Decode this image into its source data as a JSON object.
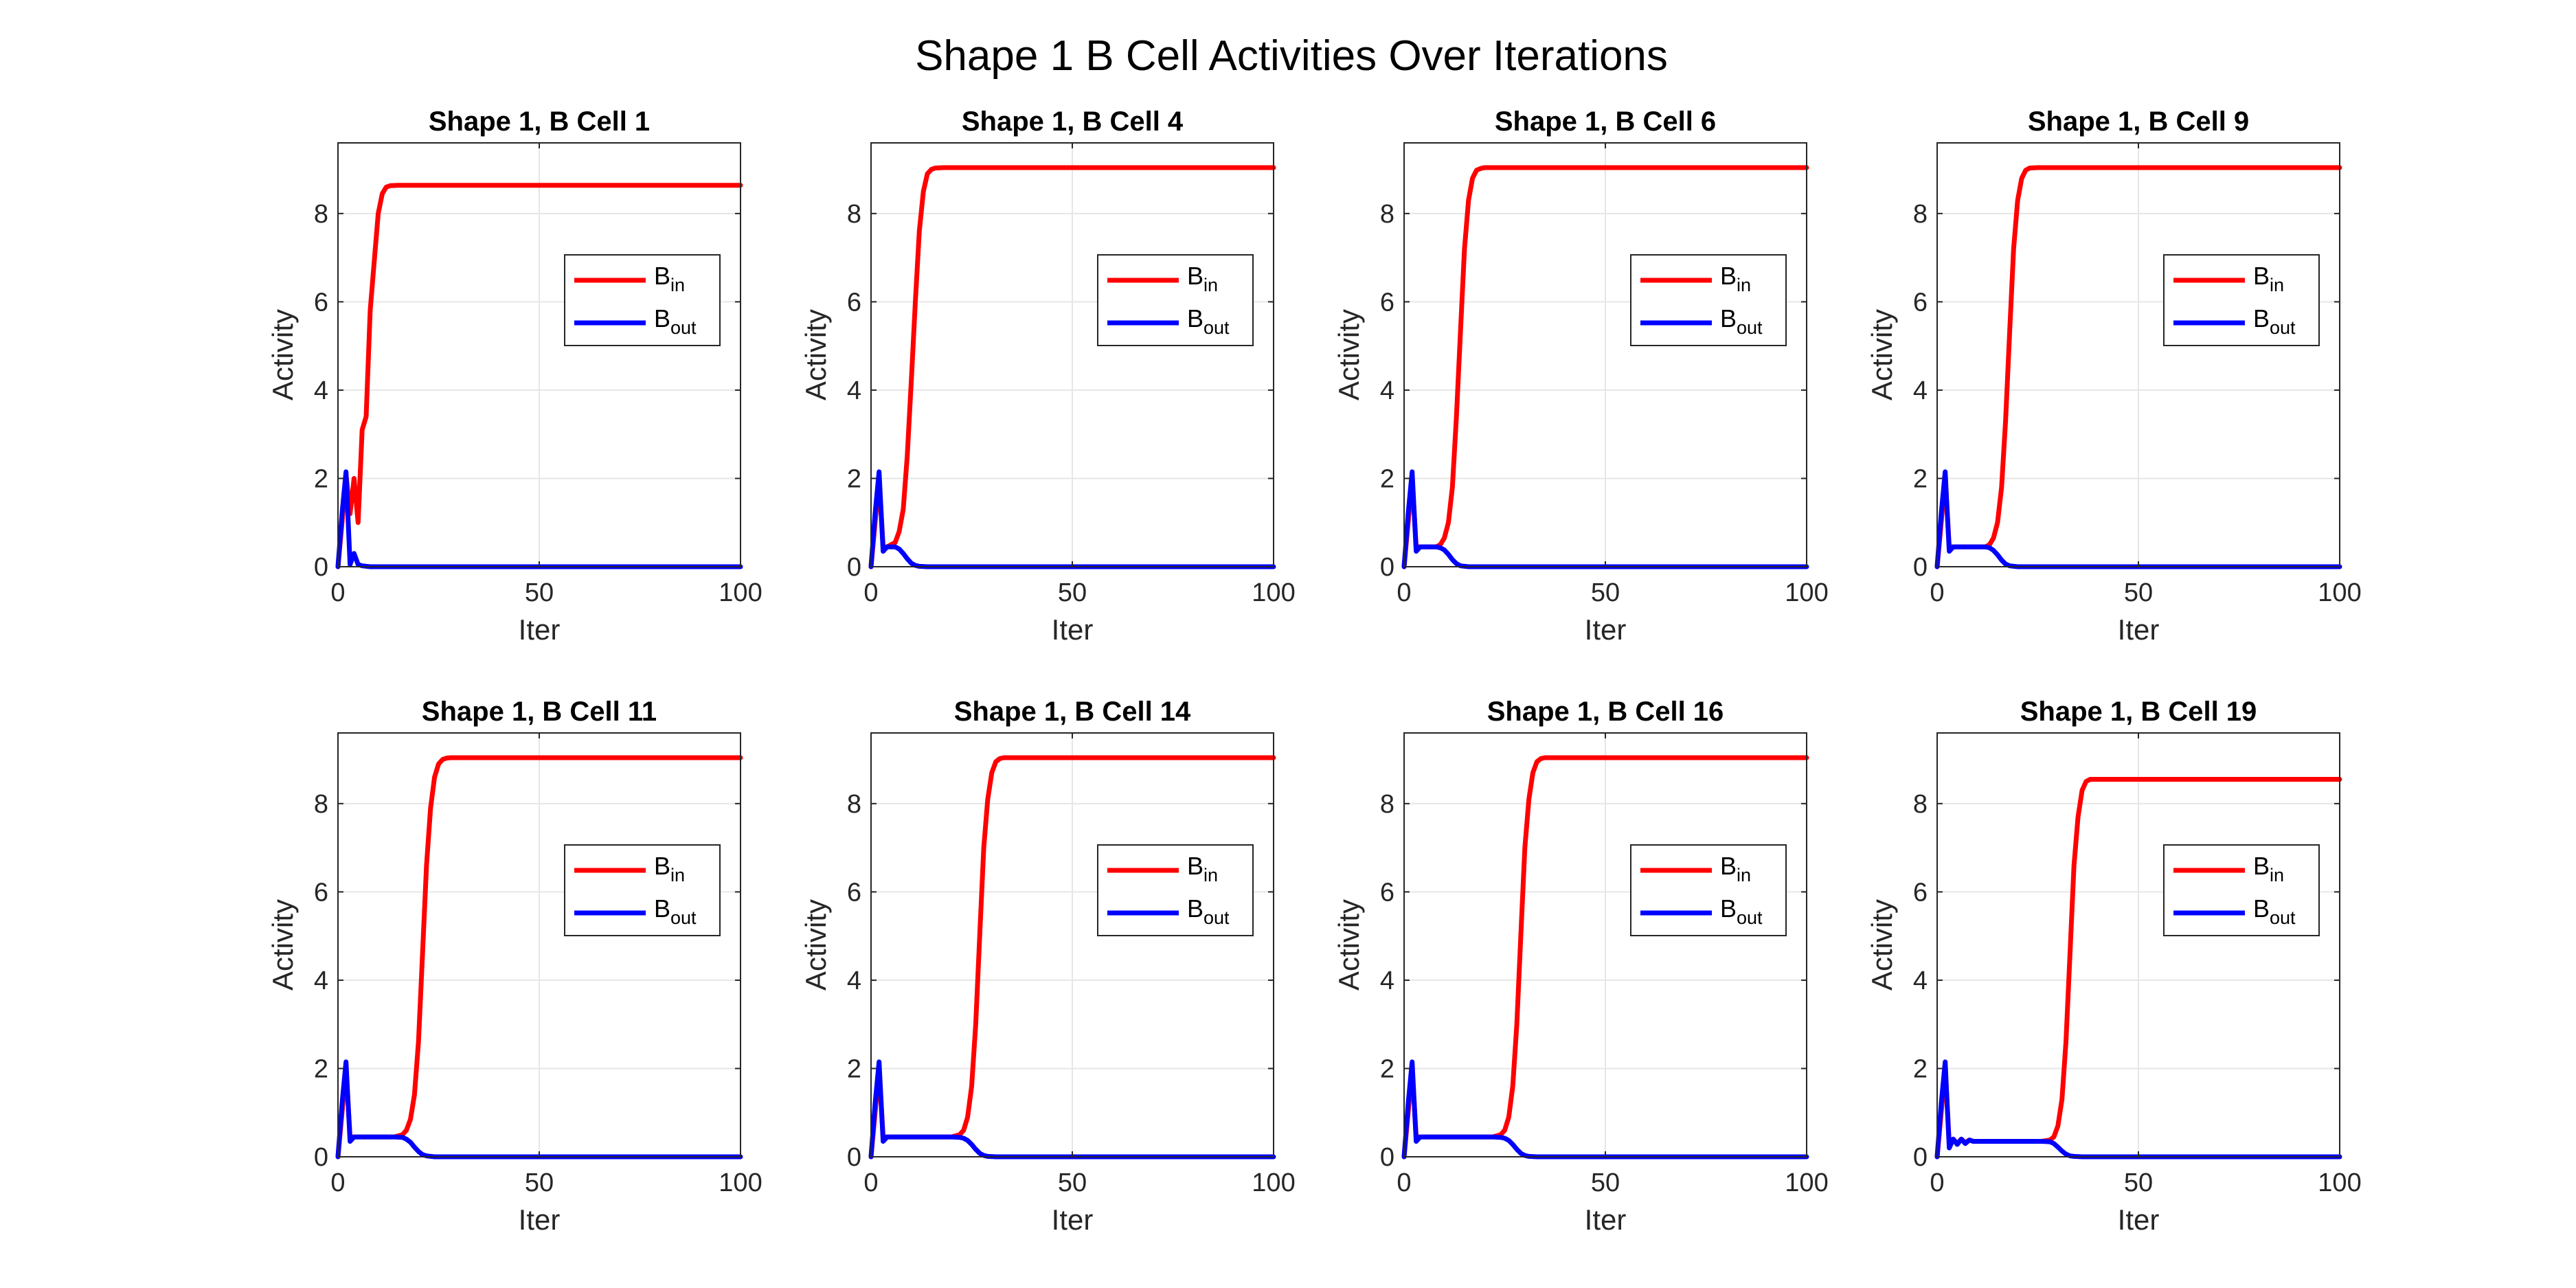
{
  "figure": {
    "title": "Shape 1 B Cell Activities Over Iterations"
  },
  "colors": {
    "b_in": "#ff0000",
    "b_out": "#0000ff",
    "grid": "#e6e6e6",
    "axis": "#262626"
  },
  "chart_data": [
    {
      "type": "line",
      "title": "Shape 1, B Cell 1",
      "xlabel": "Iter",
      "ylabel": "Activity",
      "xlim": [
        0,
        100
      ],
      "ylim": [
        0,
        9.6
      ],
      "xticks": [
        0,
        50,
        100
      ],
      "yticks": [
        0,
        2,
        4,
        6,
        8
      ],
      "grid": true,
      "legend_position": "right-middle",
      "series": [
        {
          "name": "B",
          "subscript": "in",
          "color": "#ff0000",
          "x": [
            0,
            1,
            2,
            3,
            4,
            5,
            6,
            7,
            8,
            9,
            10,
            11,
            12,
            13,
            15,
            20,
            30,
            50,
            100
          ],
          "y": [
            0,
            1.0,
            2.1,
            1.2,
            2.0,
            1.0,
            3.1,
            3.4,
            5.8,
            6.9,
            8.0,
            8.45,
            8.6,
            8.63,
            8.64,
            8.64,
            8.64,
            8.64,
            8.64
          ]
        },
        {
          "name": "B",
          "subscript": "out",
          "color": "#0000ff",
          "x": [
            0,
            1,
            2,
            3,
            4,
            5,
            6,
            8,
            10,
            20,
            50,
            100
          ],
          "y": [
            0,
            1.2,
            2.15,
            0.05,
            0.3,
            0.05,
            0.02,
            0,
            0,
            0,
            0,
            0
          ]
        }
      ]
    },
    {
      "type": "line",
      "title": "Shape 1, B Cell 4",
      "xlabel": "Iter",
      "ylabel": "Activity",
      "xlim": [
        0,
        100
      ],
      "ylim": [
        0,
        9.6
      ],
      "xticks": [
        0,
        50,
        100
      ],
      "yticks": [
        0,
        2,
        4,
        6,
        8
      ],
      "grid": true,
      "legend_position": "right-middle",
      "series": [
        {
          "name": "B",
          "subscript": "in",
          "color": "#ff0000",
          "x": [
            0,
            1,
            2,
            3,
            4,
            5,
            6,
            7,
            8,
            9,
            10,
            11,
            12,
            13,
            14,
            15,
            16,
            18,
            20,
            30,
            50,
            100
          ],
          "y": [
            0,
            1.0,
            2.0,
            0.45,
            0.45,
            0.5,
            0.55,
            0.8,
            1.3,
            2.5,
            4.2,
            6.0,
            7.6,
            8.5,
            8.9,
            9.0,
            9.03,
            9.04,
            9.04,
            9.04,
            9.04,
            9.04
          ]
        },
        {
          "name": "B",
          "subscript": "out",
          "color": "#0000ff",
          "x": [
            0,
            1,
            2,
            3,
            4,
            5,
            6,
            7,
            8,
            9,
            10,
            11,
            12,
            14,
            20,
            50,
            100
          ],
          "y": [
            0,
            1.2,
            2.15,
            0.35,
            0.45,
            0.45,
            0.45,
            0.4,
            0.3,
            0.18,
            0.08,
            0.03,
            0.01,
            0,
            0,
            0,
            0
          ]
        }
      ]
    },
    {
      "type": "line",
      "title": "Shape 1, B Cell 6",
      "xlabel": "Iter",
      "ylabel": "Activity",
      "xlim": [
        0,
        100
      ],
      "ylim": [
        0,
        9.6
      ],
      "xticks": [
        0,
        50,
        100
      ],
      "yticks": [
        0,
        2,
        4,
        6,
        8
      ],
      "grid": true,
      "legend_position": "right-middle",
      "series": [
        {
          "name": "B",
          "subscript": "in",
          "color": "#ff0000",
          "x": [
            0,
            1,
            2,
            3,
            4,
            6,
            8,
            9,
            10,
            11,
            12,
            13,
            14,
            15,
            16,
            17,
            18,
            19,
            20,
            22,
            30,
            50,
            100
          ],
          "y": [
            0,
            1.0,
            2.0,
            0.45,
            0.45,
            0.45,
            0.45,
            0.5,
            0.65,
            1.0,
            1.8,
            3.4,
            5.3,
            7.2,
            8.3,
            8.8,
            8.98,
            9.02,
            9.04,
            9.04,
            9.04,
            9.04,
            9.04
          ]
        },
        {
          "name": "B",
          "subscript": "out",
          "color": "#0000ff",
          "x": [
            0,
            1,
            2,
            3,
            4,
            6,
            8,
            9,
            10,
            11,
            12,
            13,
            14,
            16,
            20,
            50,
            100
          ],
          "y": [
            0,
            1.2,
            2.15,
            0.35,
            0.45,
            0.45,
            0.45,
            0.43,
            0.38,
            0.28,
            0.16,
            0.07,
            0.02,
            0,
            0,
            0,
            0
          ]
        }
      ]
    },
    {
      "type": "line",
      "title": "Shape 1, B Cell 9",
      "xlabel": "Iter",
      "ylabel": "Activity",
      "xlim": [
        0,
        100
      ],
      "ylim": [
        0,
        9.6
      ],
      "xticks": [
        0,
        50,
        100
      ],
      "yticks": [
        0,
        2,
        4,
        6,
        8
      ],
      "grid": true,
      "legend_position": "right-middle",
      "series": [
        {
          "name": "B",
          "subscript": "in",
          "color": "#ff0000",
          "x": [
            0,
            1,
            2,
            3,
            4,
            6,
            8,
            10,
            12,
            13,
            14,
            15,
            16,
            17,
            18,
            19,
            20,
            21,
            22,
            23,
            25,
            30,
            50,
            100
          ],
          "y": [
            0,
            1.0,
            2.0,
            0.45,
            0.45,
            0.45,
            0.45,
            0.45,
            0.45,
            0.5,
            0.65,
            1.0,
            1.8,
            3.3,
            5.3,
            7.2,
            8.3,
            8.8,
            8.98,
            9.03,
            9.04,
            9.04,
            9.04,
            9.04
          ]
        },
        {
          "name": "B",
          "subscript": "out",
          "color": "#0000ff",
          "x": [
            0,
            1,
            2,
            3,
            4,
            6,
            10,
            12,
            13,
            14,
            15,
            16,
            17,
            18,
            20,
            50,
            100
          ],
          "y": [
            0,
            1.2,
            2.15,
            0.35,
            0.45,
            0.45,
            0.45,
            0.45,
            0.43,
            0.37,
            0.27,
            0.15,
            0.06,
            0.02,
            0,
            0,
            0
          ]
        }
      ]
    },
    {
      "type": "line",
      "title": "Shape 1, B Cell 11",
      "xlabel": "Iter",
      "ylabel": "Activity",
      "xlim": [
        0,
        100
      ],
      "ylim": [
        0,
        9.6
      ],
      "xticks": [
        0,
        50,
        100
      ],
      "yticks": [
        0,
        2,
        4,
        6,
        8
      ],
      "grid": true,
      "legend_position": "right-middle",
      "series": [
        {
          "name": "B",
          "subscript": "in",
          "color": "#ff0000",
          "x": [
            0,
            1,
            2,
            3,
            4,
            6,
            10,
            14,
            16,
            17,
            18,
            19,
            20,
            21,
            22,
            23,
            24,
            25,
            26,
            27,
            28,
            30,
            50,
            100
          ],
          "y": [
            0,
            1.0,
            2.0,
            0.45,
            0.45,
            0.45,
            0.45,
            0.45,
            0.5,
            0.6,
            0.85,
            1.4,
            2.6,
            4.6,
            6.6,
            7.9,
            8.6,
            8.9,
            9.0,
            9.03,
            9.04,
            9.04,
            9.04,
            9.04
          ]
        },
        {
          "name": "B",
          "subscript": "out",
          "color": "#0000ff",
          "x": [
            0,
            1,
            2,
            3,
            4,
            6,
            10,
            14,
            16,
            17,
            18,
            19,
            20,
            21,
            22,
            24,
            50,
            100
          ],
          "y": [
            0,
            1.2,
            2.15,
            0.35,
            0.45,
            0.45,
            0.45,
            0.45,
            0.44,
            0.4,
            0.33,
            0.22,
            0.12,
            0.05,
            0.02,
            0,
            0,
            0
          ]
        }
      ]
    },
    {
      "type": "line",
      "title": "Shape 1, B Cell 14",
      "xlabel": "Iter",
      "ylabel": "Activity",
      "xlim": [
        0,
        100
      ],
      "ylim": [
        0,
        9.6
      ],
      "xticks": [
        0,
        50,
        100
      ],
      "yticks": [
        0,
        2,
        4,
        6,
        8
      ],
      "grid": true,
      "legend_position": "right-middle",
      "series": [
        {
          "name": "B",
          "subscript": "in",
          "color": "#ff0000",
          "x": [
            0,
            1,
            2,
            3,
            4,
            6,
            10,
            16,
            20,
            22,
            23,
            24,
            25,
            26,
            27,
            28,
            29,
            30,
            31,
            32,
            33,
            35,
            50,
            100
          ],
          "y": [
            0,
            1.0,
            2.0,
            0.45,
            0.45,
            0.45,
            0.45,
            0.45,
            0.45,
            0.5,
            0.6,
            0.9,
            1.6,
            3.0,
            5.0,
            7.0,
            8.1,
            8.7,
            8.95,
            9.02,
            9.04,
            9.04,
            9.04,
            9.04
          ]
        },
        {
          "name": "B",
          "subscript": "out",
          "color": "#0000ff",
          "x": [
            0,
            1,
            2,
            3,
            4,
            6,
            10,
            16,
            20,
            22,
            23,
            24,
            25,
            26,
            27,
            28,
            29,
            31,
            50,
            100
          ],
          "y": [
            0,
            1.2,
            2.15,
            0.35,
            0.45,
            0.45,
            0.45,
            0.45,
            0.45,
            0.44,
            0.42,
            0.37,
            0.28,
            0.17,
            0.08,
            0.03,
            0.01,
            0,
            0,
            0
          ]
        }
      ]
    },
    {
      "type": "line",
      "title": "Shape 1, B Cell 16",
      "xlabel": "Iter",
      "ylabel": "Activity",
      "xlim": [
        0,
        100
      ],
      "ylim": [
        0,
        9.6
      ],
      "xticks": [
        0,
        50,
        100
      ],
      "yticks": [
        0,
        2,
        4,
        6,
        8
      ],
      "grid": true,
      "legend_position": "right-middle",
      "series": [
        {
          "name": "B",
          "subscript": "in",
          "color": "#ff0000",
          "x": [
            0,
            1,
            2,
            3,
            4,
            6,
            10,
            16,
            22,
            24,
            25,
            26,
            27,
            28,
            29,
            30,
            31,
            32,
            33,
            34,
            35,
            37,
            50,
            100
          ],
          "y": [
            0,
            1.0,
            2.0,
            0.45,
            0.45,
            0.45,
            0.45,
            0.45,
            0.45,
            0.5,
            0.6,
            0.9,
            1.6,
            3.0,
            5.0,
            7.0,
            8.1,
            8.7,
            8.95,
            9.02,
            9.04,
            9.04,
            9.04,
            9.04
          ]
        },
        {
          "name": "B",
          "subscript": "out",
          "color": "#0000ff",
          "x": [
            0,
            1,
            2,
            3,
            4,
            6,
            10,
            16,
            22,
            24,
            25,
            26,
            27,
            28,
            29,
            30,
            31,
            33,
            50,
            100
          ],
          "y": [
            0,
            1.2,
            2.15,
            0.35,
            0.45,
            0.45,
            0.45,
            0.45,
            0.45,
            0.44,
            0.42,
            0.37,
            0.28,
            0.17,
            0.08,
            0.03,
            0.01,
            0,
            0,
            0
          ]
        }
      ]
    },
    {
      "type": "line",
      "title": "Shape 1, B Cell 19",
      "xlabel": "Iter",
      "ylabel": "Activity",
      "xlim": [
        0,
        100
      ],
      "ylim": [
        0,
        9.6
      ],
      "xticks": [
        0,
        50,
        100
      ],
      "yticks": [
        0,
        2,
        4,
        6,
        8
      ],
      "grid": true,
      "legend_position": "right-middle",
      "series": [
        {
          "name": "B",
          "subscript": "in",
          "color": "#ff0000",
          "x": [
            0,
            1,
            2,
            3,
            4,
            5,
            6,
            7,
            8,
            9,
            10,
            14,
            20,
            26,
            28,
            29,
            30,
            31,
            32,
            33,
            34,
            35,
            36,
            37,
            38,
            40,
            50,
            100
          ],
          "y": [
            0,
            1.0,
            2.0,
            0.3,
            0.4,
            0.3,
            0.4,
            0.32,
            0.38,
            0.35,
            0.35,
            0.35,
            0.35,
            0.35,
            0.38,
            0.45,
            0.7,
            1.3,
            2.6,
            4.6,
            6.6,
            7.7,
            8.3,
            8.5,
            8.55,
            8.55,
            8.55,
            8.55
          ]
        },
        {
          "name": "B",
          "subscript": "out",
          "color": "#0000ff",
          "x": [
            0,
            1,
            2,
            3,
            4,
            5,
            6,
            7,
            8,
            9,
            10,
            14,
            20,
            26,
            28,
            29,
            30,
            31,
            32,
            33,
            34,
            36,
            50,
            100
          ],
          "y": [
            0,
            1.2,
            2.15,
            0.2,
            0.4,
            0.28,
            0.4,
            0.3,
            0.38,
            0.35,
            0.35,
            0.35,
            0.35,
            0.35,
            0.34,
            0.3,
            0.22,
            0.13,
            0.06,
            0.02,
            0.01,
            0,
            0,
            0
          ]
        }
      ]
    }
  ]
}
